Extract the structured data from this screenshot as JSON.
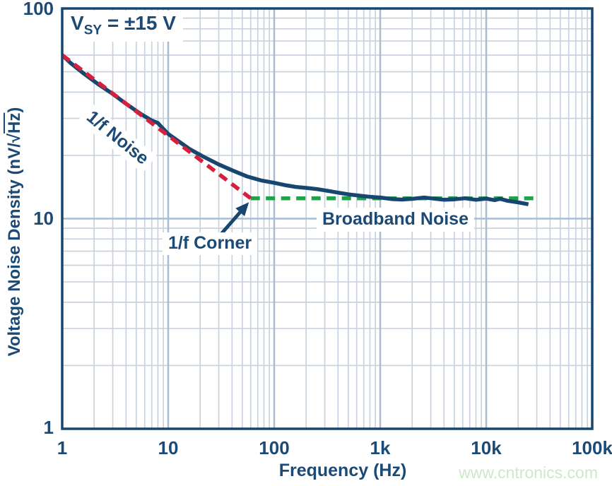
{
  "watermark": "www.cntronics.com",
  "colors": {
    "navy": "#1a4a75",
    "curve": "#17466e",
    "red": "#d5203e",
    "green": "#21a149",
    "grid_minor": "#c8d3df",
    "grid_major": "#a9bdd0",
    "watermark_green": "#cde9ca"
  },
  "chart_data": {
    "type": "line",
    "title": "",
    "xlabel": "Frequency (Hz)",
    "ylabel": "Voltage Noise Density (nV/√Hz)",
    "ylabel_parts": {
      "pre": "Voltage Noise Density (nV/",
      "radical": "√",
      "radicand": "Hz",
      "post": ")"
    },
    "x_scale": "log",
    "y_scale": "log",
    "xlim": [
      1,
      100000
    ],
    "ylim": [
      1,
      100
    ],
    "grid": "log major+minor",
    "x_tick_values": [
      1,
      10,
      100,
      1000,
      10000,
      100000
    ],
    "x_tick_labels": [
      "1",
      "10",
      "100",
      "1k",
      "10k",
      "100k"
    ],
    "y_tick_values": [
      100,
      10,
      1
    ],
    "y_tick_labels": [
      "100",
      "10",
      "1"
    ],
    "annotations": {
      "supply_base": "V",
      "supply_sub": "SY",
      "supply_rest": " = ±15 V",
      "flicker_label": "1/f Noise",
      "corner_label": "1/f Corner",
      "broadband_label": "Broadband Noise"
    },
    "corner": {
      "f": 60,
      "v": 12.5
    },
    "series": [
      {
        "name": "measured voltage noise density",
        "color": "#17466e",
        "style": "solid",
        "points": [
          [
            1,
            60
          ],
          [
            1.2,
            55
          ],
          [
            1.6,
            49
          ],
          [
            2.2,
            43.5
          ],
          [
            3,
            39.2
          ],
          [
            4,
            35.2
          ],
          [
            5.5,
            31.5
          ],
          [
            7,
            29.3
          ],
          [
            8,
            28.5
          ],
          [
            8.7,
            27.2
          ],
          [
            10,
            25.3
          ],
          [
            12,
            23.7
          ],
          [
            16,
            21.4
          ],
          [
            22,
            19.6
          ],
          [
            30,
            18.1
          ],
          [
            41,
            16.9
          ],
          [
            55,
            15.9
          ],
          [
            75,
            15.2
          ],
          [
            100,
            14.8
          ],
          [
            130,
            14.4
          ],
          [
            160,
            14.15
          ],
          [
            200,
            14
          ],
          [
            260,
            13.8
          ],
          [
            320,
            13.55
          ],
          [
            400,
            13.3
          ],
          [
            500,
            13.05
          ],
          [
            650,
            12.85
          ],
          [
            800,
            12.7
          ],
          [
            1000,
            12.6
          ],
          [
            1300,
            12.38
          ],
          [
            1600,
            12.32
          ],
          [
            2000,
            12.42
          ],
          [
            2600,
            12.6
          ],
          [
            3200,
            12.45
          ],
          [
            4000,
            12.3
          ],
          [
            5000,
            12.35
          ],
          [
            6300,
            12.5
          ],
          [
            8000,
            12.3
          ],
          [
            10000,
            12.45
          ],
          [
            12000,
            12.25
          ],
          [
            13500,
            12.42
          ],
          [
            16000,
            12.15
          ],
          [
            20000,
            11.95
          ],
          [
            25000,
            11.7
          ]
        ]
      },
      {
        "name": "1/f noise asymptote",
        "color": "#d5203e",
        "style": "dashed",
        "points": [
          [
            1,
            60
          ],
          [
            60,
            12.5
          ]
        ]
      },
      {
        "name": "broadband noise asymptote",
        "color": "#21a149",
        "style": "dashed",
        "points": [
          [
            60,
            12.5
          ],
          [
            31000,
            12.5
          ]
        ]
      }
    ]
  }
}
